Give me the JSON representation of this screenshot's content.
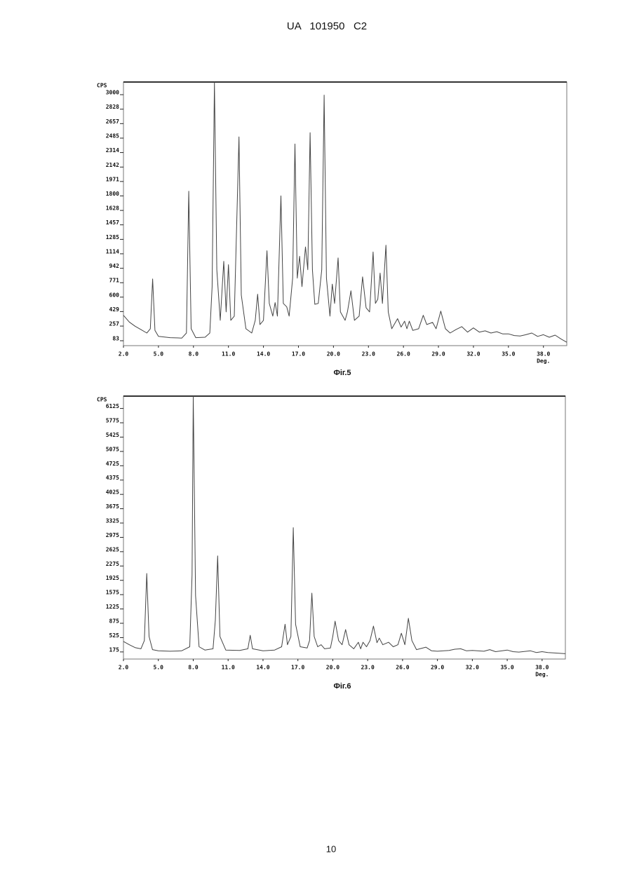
{
  "header": {
    "text": "UA   101950   C2"
  },
  "page_number": "10",
  "chart_data": [
    {
      "type": "line",
      "caption": "Фіг.5",
      "y_label": "CPS",
      "x_label": "Deg.",
      "xlim": [
        2,
        40
      ],
      "ylim": [
        0,
        3125
      ],
      "xticks": [
        {
          "value": 2,
          "label": "2.0"
        },
        {
          "value": 5,
          "label": "5.0"
        },
        {
          "value": 8,
          "label": "8.0"
        },
        {
          "value": 11,
          "label": "11.0"
        },
        {
          "value": 14,
          "label": "14.0"
        },
        {
          "value": 17,
          "label": "17.0"
        },
        {
          "value": 20,
          "label": "20.0"
        },
        {
          "value": 23,
          "label": "23.0"
        },
        {
          "value": 26,
          "label": "26.0"
        },
        {
          "value": 29,
          "label": "29.0"
        },
        {
          "value": 32,
          "label": "32.0"
        },
        {
          "value": 35,
          "label": "35.0"
        },
        {
          "value": 38,
          "label": "38.0"
        }
      ],
      "yticks": [
        83,
        257,
        429,
        600,
        771,
        942,
        1114,
        1285,
        1457,
        1628,
        1800,
        1971,
        2142,
        2314,
        2485,
        2657,
        2828,
        3000
      ],
      "x": [
        2.0,
        2.5,
        3.0,
        3.5,
        4.0,
        4.3,
        4.5,
        4.7,
        5.0,
        6.0,
        7.0,
        7.4,
        7.6,
        7.8,
        8.2,
        9.0,
        9.4,
        9.6,
        9.8,
        10.0,
        10.3,
        10.6,
        10.8,
        11.0,
        11.2,
        11.5,
        11.9,
        12.1,
        12.5,
        13.0,
        13.3,
        13.5,
        13.7,
        14.0,
        14.3,
        14.5,
        14.8,
        15.0,
        15.2,
        15.5,
        15.7,
        16.0,
        16.2,
        16.5,
        16.7,
        16.9,
        17.1,
        17.3,
        17.6,
        17.8,
        18.0,
        18.2,
        18.4,
        18.7,
        19.0,
        19.2,
        19.4,
        19.7,
        19.9,
        20.1,
        20.4,
        20.6,
        21.0,
        21.2,
        21.5,
        21.8,
        22.2,
        22.5,
        22.8,
        23.1,
        23.4,
        23.6,
        23.8,
        24.0,
        24.2,
        24.5,
        24.7,
        25.0,
        25.5,
        25.8,
        26.1,
        26.3,
        26.5,
        26.8,
        27.3,
        27.7,
        28.0,
        28.5,
        28.8,
        29.2,
        29.6,
        30.0,
        30.5,
        31.0,
        31.5,
        32.0,
        32.5,
        33.0,
        33.5,
        34.0,
        34.5,
        35.0,
        35.5,
        36.0,
        36.5,
        37.0,
        37.5,
        38.0,
        38.5,
        39.0,
        39.5,
        40.0
      ],
      "series": [
        {
          "color": "#444444",
          "values": [
            360,
            280,
            230,
            190,
            150,
            200,
            790,
            180,
            110,
            95,
            90,
            150,
            1830,
            200,
            95,
            100,
            150,
            700,
            3125,
            900,
            300,
            1000,
            400,
            960,
            300,
            350,
            2475,
            600,
            200,
            150,
            300,
            610,
            250,
            300,
            1125,
            500,
            350,
            510,
            350,
            1775,
            500,
            460,
            350,
            800,
            2390,
            800,
            1060,
            700,
            1170,
            900,
            2525,
            900,
            490,
            500,
            900,
            2970,
            800,
            350,
            730,
            500,
            1040,
            400,
            300,
            400,
            650,
            300,
            350,
            815,
            450,
            400,
            1110,
            500,
            550,
            860,
            500,
            1190,
            400,
            200,
            320,
            220,
            290,
            200,
            290,
            180,
            200,
            360,
            250,
            275,
            200,
            410,
            200,
            150,
            190,
            225,
            160,
            210,
            160,
            175,
            150,
            165,
            140,
            140,
            120,
            115,
            130,
            150,
            110,
            130,
            100,
            125,
            80,
            40
          ]
        }
      ]
    },
    {
      "type": "line",
      "caption": "Фіг.6",
      "y_label": "CPS",
      "x_label": "Deg.",
      "xlim": [
        2,
        40
      ],
      "ylim": [
        -50,
        6375
      ],
      "xticks": [
        {
          "value": 2,
          "label": "2.0"
        },
        {
          "value": 5,
          "label": "5.0"
        },
        {
          "value": 8,
          "label": "8.0"
        },
        {
          "value": 11,
          "label": "11.0"
        },
        {
          "value": 14,
          "label": "14.0"
        },
        {
          "value": 17,
          "label": "17.0"
        },
        {
          "value": 20,
          "label": "20.0"
        },
        {
          "value": 23,
          "label": "23.0"
        },
        {
          "value": 26,
          "label": "26.0"
        },
        {
          "value": 29,
          "label": "29.0"
        },
        {
          "value": 32,
          "label": "32.0"
        },
        {
          "value": 35,
          "label": "35.0"
        },
        {
          "value": 38,
          "label": "38.0"
        }
      ],
      "yticks": [
        175,
        525,
        875,
        1225,
        1575,
        1925,
        2275,
        2625,
        2975,
        3325,
        3675,
        4025,
        4375,
        4725,
        5075,
        5425,
        5775,
        6125
      ],
      "x": [
        2.0,
        2.5,
        3.0,
        3.5,
        3.8,
        4.0,
        4.2,
        4.5,
        5.0,
        6.0,
        7.0,
        7.7,
        7.9,
        8.0,
        8.2,
        8.5,
        9.0,
        9.7,
        9.9,
        10.1,
        10.3,
        10.8,
        12.0,
        12.7,
        12.9,
        13.1,
        14.0,
        15.0,
        15.6,
        15.9,
        16.1,
        16.4,
        16.6,
        16.8,
        17.2,
        17.8,
        18.0,
        18.2,
        18.4,
        18.7,
        19.0,
        19.3,
        19.8,
        20.0,
        20.2,
        20.5,
        20.8,
        21.1,
        21.4,
        21.8,
        22.2,
        22.4,
        22.6,
        22.9,
        23.2,
        23.5,
        23.8,
        24.0,
        24.3,
        24.8,
        25.2,
        25.6,
        25.9,
        26.2,
        26.5,
        26.8,
        27.2,
        28.0,
        28.5,
        29.0,
        30.0,
        30.5,
        31.0,
        31.5,
        32.0,
        33.0,
        33.5,
        34.0,
        35.0,
        35.5,
        36.0,
        37.0,
        37.5,
        38.0,
        38.5,
        39.0,
        40.0
      ],
      "series": [
        {
          "color": "#444444",
          "values": [
            380,
            300,
            230,
            200,
            400,
            2040,
            500,
            180,
            150,
            140,
            150,
            250,
            2000,
            6375,
            1500,
            250,
            170,
            200,
            900,
            2470,
            500,
            170,
            160,
            200,
            530,
            200,
            150,
            170,
            250,
            800,
            300,
            500,
            3160,
            800,
            250,
            220,
            400,
            1560,
            500,
            250,
            300,
            200,
            220,
            500,
            875,
            400,
            300,
            670,
            300,
            200,
            360,
            200,
            360,
            250,
            400,
            755,
            350,
            460,
            300,
            360,
            250,
            300,
            580,
            300,
            945,
            400,
            180,
            240,
            150,
            140,
            160,
            190,
            200,
            150,
            160,
            140,
            180,
            130,
            170,
            130,
            120,
            150,
            110,
            130,
            110,
            100,
            80
          ]
        }
      ]
    }
  ]
}
